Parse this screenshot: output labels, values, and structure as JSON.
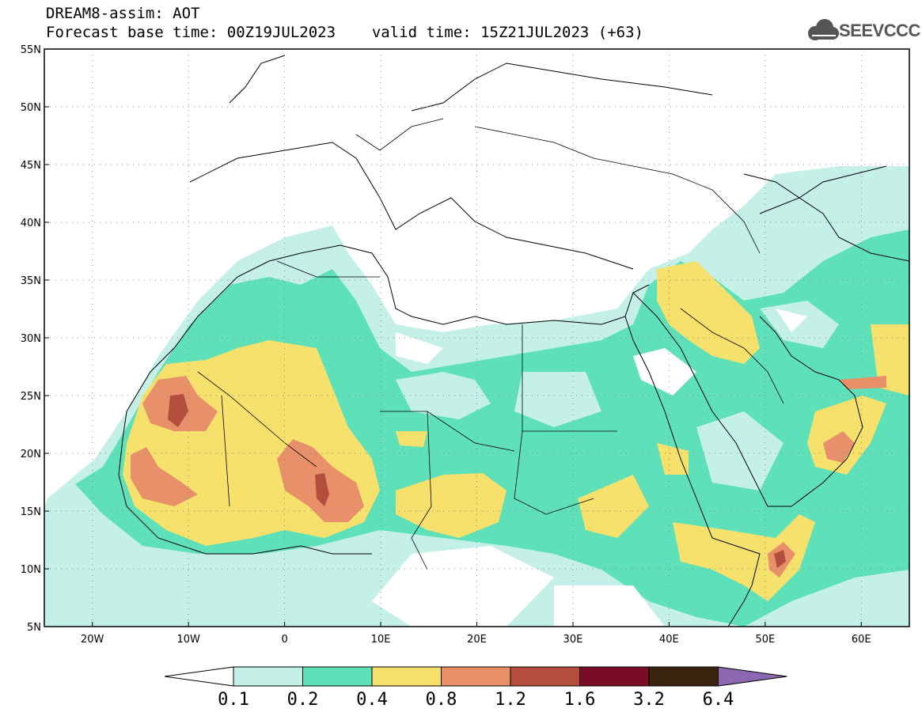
{
  "header": {
    "model_line": "DREAM8-assim: AOT",
    "forecast_label": "Forecast base time: 00Z19JUL2023",
    "valid_label": "valid time: 15Z21JUL2023 (+63)"
  },
  "logo": {
    "text": "SEEVCCC",
    "icon": "cloud-icon"
  },
  "map": {
    "lon_range": [
      -25,
      65
    ],
    "lat_range": [
      5,
      55
    ],
    "lat_ticks": [
      "55N",
      "50N",
      "45N",
      "40N",
      "35N",
      "30N",
      "25N",
      "20N",
      "15N",
      "10N",
      "5N"
    ],
    "lon_ticks": [
      "20W",
      "10W",
      "0",
      "10E",
      "20E",
      "30E",
      "40E",
      "50E",
      "60E"
    ],
    "grid": "dotted"
  },
  "colorbar": {
    "thresholds": [
      "0.1",
      "0.2",
      "0.4",
      "0.8",
      "1.2",
      "1.6",
      "3.2",
      "6.4"
    ],
    "colors": [
      "#ffffff",
      "#c4f0e8",
      "#5ee0b8",
      "#f5e16c",
      "#e8906a",
      "#b34e3c",
      "#7a0d26",
      "#3a2410",
      "#8c68b0"
    ]
  }
}
